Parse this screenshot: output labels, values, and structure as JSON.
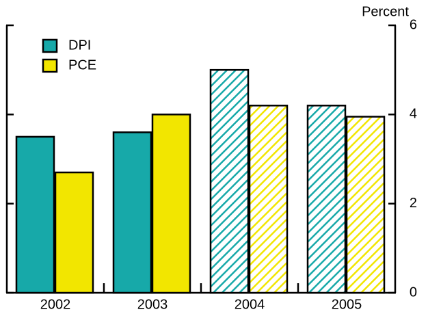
{
  "chart_data": {
    "type": "bar",
    "y_label": "Percent",
    "categories": [
      "2002",
      "2003",
      "2004",
      "2005"
    ],
    "hatched": [
      false,
      false,
      true,
      true
    ],
    "series": [
      {
        "name": "DPI",
        "color": "#17a9a9",
        "values": [
          3.5,
          3.6,
          5.0,
          4.2
        ]
      },
      {
        "name": "PCE",
        "color": "#f2e600",
        "values": [
          2.7,
          4.0,
          4.2,
          3.95
        ]
      }
    ],
    "ylim": [
      0,
      6
    ],
    "yticks": [
      0,
      2,
      4,
      6
    ],
    "y_axis_side": "right"
  }
}
